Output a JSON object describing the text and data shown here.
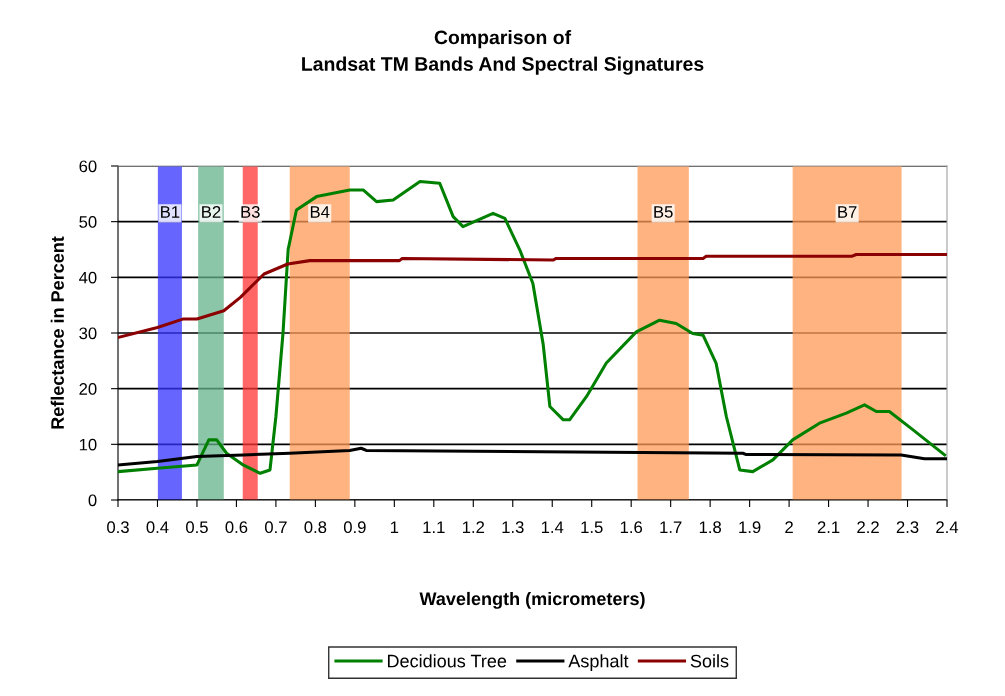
{
  "chart_data": {
    "type": "line",
    "title": "Comparison of\nLandsat TM Bands And Spectral Signatures",
    "xlabel": "Wavelength (micrometers)",
    "ylabel": "Reflectance in Percent",
    "series": [
      {
        "name": "Decidious Tree",
        "color": "#008000",
        "x": [
          0.3,
          0.4,
          0.5,
          0.53,
          0.55,
          0.575,
          0.617,
          0.66,
          0.685,
          0.7,
          0.718,
          0.731,
          0.752,
          0.803,
          0.887,
          0.921,
          0.955,
          0.997,
          1.065,
          1.115,
          1.149,
          1.174,
          1.25,
          1.28,
          1.318,
          1.351,
          1.377,
          1.394,
          1.428,
          1.444,
          1.487,
          1.537,
          1.613,
          1.672,
          1.714,
          1.756,
          1.782,
          1.815,
          1.841,
          1.875,
          1.908,
          1.959,
          2.009,
          2.077,
          2.145,
          2.191,
          2.221,
          2.254,
          2.314,
          2.394
        ],
        "values": [
          5.1,
          5.7,
          6.3,
          10.8,
          10.8,
          8.4,
          6.3,
          4.8,
          5.4,
          15,
          30,
          45,
          52.1,
          54.5,
          55.7,
          55.7,
          53.6,
          53.9,
          57.2,
          56.9,
          50.9,
          49.1,
          51.5,
          50.6,
          44.9,
          38.9,
          28,
          16.8,
          14.4,
          14.4,
          18.6,
          24.6,
          30.2,
          32.3,
          31.7,
          29.9,
          29.6,
          24.6,
          15,
          5.4,
          5.1,
          7.2,
          10.8,
          13.8,
          15.6,
          17.1,
          15.9,
          15.9,
          12.6,
          8.1
        ]
      },
      {
        "name": "Asphalt",
        "color": "#000000",
        "x": [
          0.3,
          0.4,
          0.5,
          0.617,
          0.735,
          0.887,
          0.916,
          0.929,
          1.883,
          1.89,
          2.284,
          2.343,
          2.4
        ],
        "values": [
          6.3,
          6.9,
          7.8,
          8.1,
          8.4,
          8.9,
          9.3,
          8.9,
          8.4,
          8.2,
          8.1,
          7.4,
          7.4
        ]
      },
      {
        "name": "Soils",
        "color": "#8b0000",
        "x": [
          0.3,
          0.4,
          0.464,
          0.5,
          0.568,
          0.61,
          0.67,
          0.73,
          0.786,
          1.013,
          1.02,
          1.402,
          1.41,
          1.782,
          1.79,
          2.16,
          2.17,
          2.4
        ],
        "values": [
          29.2,
          31.0,
          32.5,
          32.5,
          34.0,
          36.4,
          40.6,
          42.4,
          43.0,
          43.0,
          43.4,
          43.1,
          43.4,
          43.4,
          43.8,
          43.8,
          44.1,
          44.1
        ]
      }
    ],
    "bands": [
      {
        "axis": "x",
        "from": 0.401,
        "to": 0.462,
        "label": "B1",
        "color": "#3333ff"
      },
      {
        "axis": "x",
        "from": 0.503,
        "to": 0.568,
        "label": "B2",
        "color": "#66b38c"
      },
      {
        "axis": "x",
        "from": 0.616,
        "to": 0.654,
        "label": "B3",
        "color": "#ff3333"
      },
      {
        "axis": "x",
        "from": 0.735,
        "to": 0.887,
        "label": "B4",
        "color": "#ff9955"
      },
      {
        "axis": "x",
        "from": 1.616,
        "to": 1.746,
        "label": "B5",
        "color": "#ff9955"
      },
      {
        "axis": "x",
        "from": 2.009,
        "to": 2.285,
        "label": "B7",
        "color": "#ff9955"
      }
    ],
    "xlim": [
      0.3,
      2.4
    ],
    "xticks": [
      0.3,
      0.4,
      0.5,
      0.6,
      0.7,
      0.8,
      0.9,
      1,
      1.1,
      1.2,
      1.3,
      1.4,
      1.5,
      1.6,
      1.7,
      1.8,
      1.9,
      2,
      2.1,
      2.2,
      2.3,
      2.4
    ],
    "ylim": [
      0,
      60
    ],
    "yticks": [
      0,
      10,
      20,
      30,
      40,
      50,
      60
    ],
    "grid": "y",
    "legend": "bottom",
    "marker": "none",
    "line_style": "solid"
  }
}
